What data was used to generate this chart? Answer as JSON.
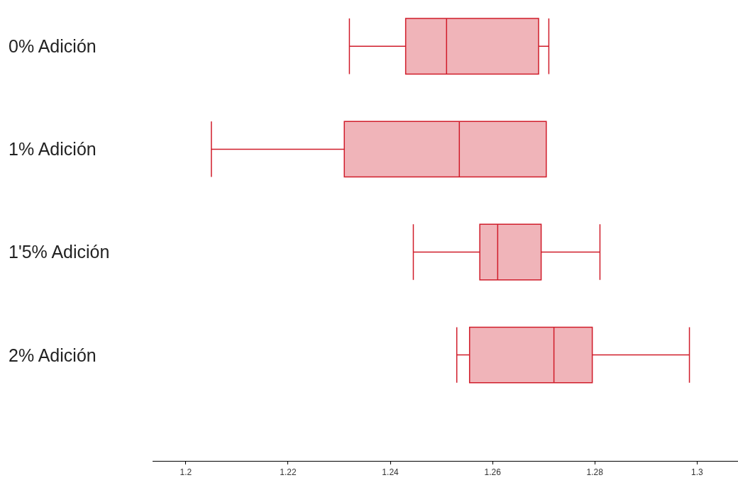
{
  "chart_data": {
    "type": "box",
    "orientation": "horizontal",
    "categories": [
      "0% Adición",
      "1% Adición",
      "1'5% Adición",
      "2% Adición"
    ],
    "color": "#d01c2a",
    "boxes": [
      {
        "low": 1.232,
        "q1": 1.243,
        "median": 1.251,
        "q3": 1.269,
        "high": 1.271
      },
      {
        "low": 1.205,
        "q1": 1.231,
        "median": 1.2535,
        "q3": 1.2705,
        "high": 1.2705
      },
      {
        "low": 1.2445,
        "q1": 1.2575,
        "median": 1.261,
        "q3": 1.2695,
        "high": 1.281
      },
      {
        "low": 1.253,
        "q1": 1.2555,
        "median": 1.272,
        "q3": 1.2795,
        "high": 1.2985
      }
    ],
    "xlim": [
      1.1935,
      1.308
    ],
    "xticks": [
      1.2,
      1.22,
      1.24,
      1.26,
      1.28,
      1.3
    ]
  }
}
